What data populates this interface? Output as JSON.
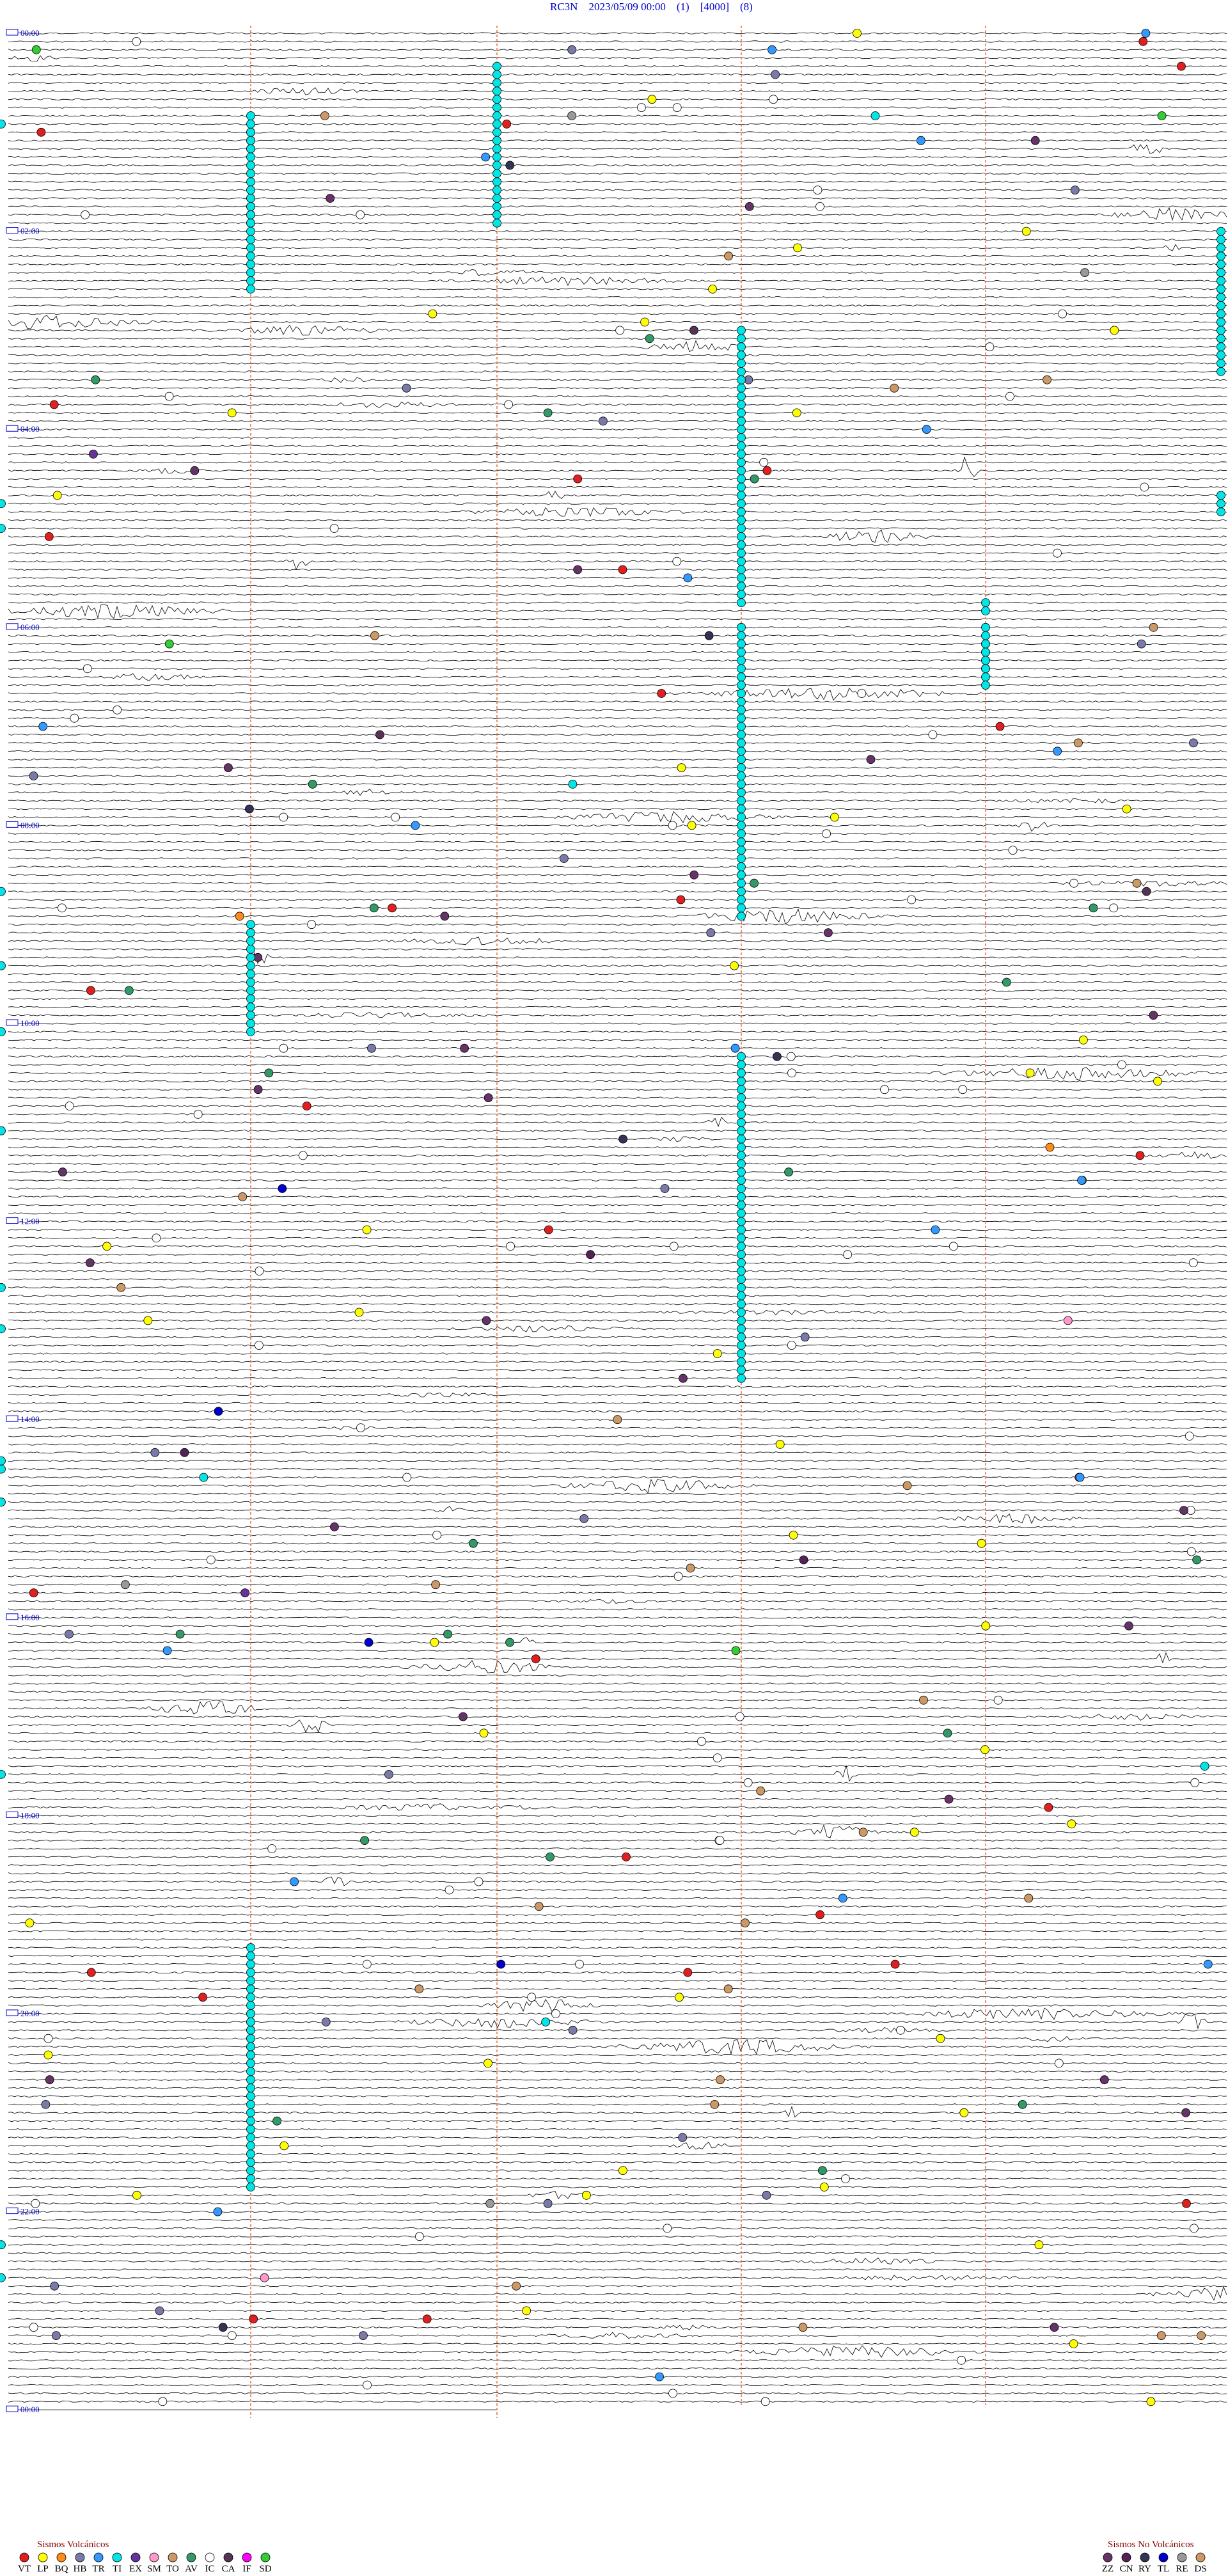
{
  "header": {
    "title": "RC3N    2023/05/09 00:00    (1)    [4000]    (8)"
  },
  "hour_labels": [
    "00:00",
    "02:00",
    "04:00",
    "06:00",
    "08:00",
    "10:00",
    "12:00",
    "14:00",
    "16:00",
    "18:00",
    "20:00",
    "22:00",
    "00:00"
  ],
  "legend": {
    "volcanic": {
      "title": "Sismos Volcánicos",
      "items": [
        {
          "code": "VT",
          "color": "#e02020"
        },
        {
          "code": "LP",
          "color": "#ffff00"
        },
        {
          "code": "BQ",
          "color": "#ff8c1a"
        },
        {
          "code": "HB",
          "color": "#7a7aa8"
        },
        {
          "code": "TR",
          "color": "#3399ff"
        },
        {
          "code": "TI",
          "color": "#00e5e5"
        },
        {
          "code": "EX",
          "color": "#663399"
        },
        {
          "code": "SM",
          "color": "#ff99cc"
        },
        {
          "code": "TO",
          "color": "#cc9966"
        },
        {
          "code": "AV",
          "color": "#339966"
        },
        {
          "code": "IC",
          "color": "#ffffff"
        },
        {
          "code": "CA",
          "color": "#553355"
        },
        {
          "code": "IF",
          "color": "#ff00ff"
        },
        {
          "code": "SD",
          "color": "#33cc33"
        }
      ]
    },
    "non_volcanic": {
      "title": "Sismos No Volcánicos",
      "items": [
        {
          "code": "ZZ",
          "color": "#663366"
        },
        {
          "code": "CN",
          "color": "#552255"
        },
        {
          "code": "RY",
          "color": "#333355"
        },
        {
          "code": "TL",
          "color": "#0000cc"
        },
        {
          "code": "RE",
          "color": "#999999"
        },
        {
          "code": "DS",
          "color": "#cc9966"
        }
      ]
    }
  }
}
